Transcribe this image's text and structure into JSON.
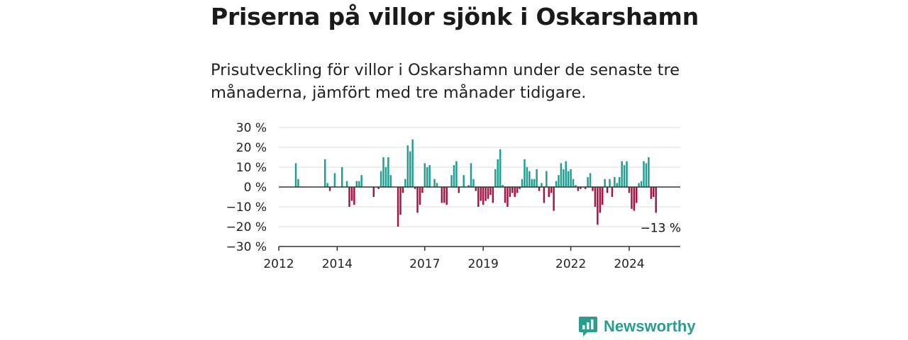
{
  "title": "Priserna på villor sjönk i Oskarshamn",
  "subtitle": "Prisutveckling för villor i Oskarshamn under de senaste tre månaderna, jämfört med tre månader tidigare.",
  "brand": "Newsworthy",
  "colors": {
    "positive": "#1d9e91",
    "negative": "#a31443",
    "grid": "#dddddd",
    "axis": "#333333",
    "brand": "#2a9d8f"
  },
  "chart_data": {
    "type": "bar",
    "x_start": "2012-01",
    "x_end": "2025-10",
    "ylim": [
      -30,
      30
    ],
    "y_ticks": [
      {
        "value": 30,
        "label": "30 %"
      },
      {
        "value": 20,
        "label": "20 %"
      },
      {
        "value": 10,
        "label": "10 %"
      },
      {
        "value": 0,
        "label": "0 %"
      },
      {
        "value": -10,
        "label": "−10 %"
      },
      {
        "value": -20,
        "label": "−20 %"
      },
      {
        "value": -30,
        "label": "−30 %"
      }
    ],
    "x_ticks": [
      {
        "date": "2012-01",
        "label": "2012"
      },
      {
        "date": "2014-01",
        "label": "2014"
      },
      {
        "date": "2017-01",
        "label": "2017"
      },
      {
        "date": "2019-01",
        "label": "2019"
      },
      {
        "date": "2022-01",
        "label": "2022"
      },
      {
        "date": "2024-01",
        "label": "2024"
      }
    ],
    "annotation": {
      "date": "2025-09",
      "value": -13,
      "text": "−13 %"
    },
    "grid": true,
    "series": [
      {
        "points": [
          [
            "2012-08",
            12
          ],
          [
            "2012-09",
            4
          ],
          [
            "2013-08",
            14
          ],
          [
            "2013-09",
            2
          ],
          [
            "2013-10",
            -2
          ],
          [
            "2013-12",
            7
          ],
          [
            "2014-03",
            10
          ],
          [
            "2014-05",
            3
          ],
          [
            "2014-06",
            -10
          ],
          [
            "2014-07",
            -7
          ],
          [
            "2014-08",
            -9
          ],
          [
            "2014-09",
            3
          ],
          [
            "2014-10",
            3
          ],
          [
            "2014-11",
            6
          ],
          [
            "2015-04",
            -5
          ],
          [
            "2015-06",
            -1
          ],
          [
            "2015-07",
            8
          ],
          [
            "2015-08",
            15
          ],
          [
            "2015-09",
            10
          ],
          [
            "2015-10",
            15
          ],
          [
            "2015-11",
            6
          ],
          [
            "2016-02",
            -20
          ],
          [
            "2016-03",
            -14
          ],
          [
            "2016-04",
            -3
          ],
          [
            "2016-05",
            4
          ],
          [
            "2016-06",
            21
          ],
          [
            "2016-07",
            18
          ],
          [
            "2016-08",
            24
          ],
          [
            "2016-09",
            -1
          ],
          [
            "2016-10",
            -13
          ],
          [
            "2016-11",
            -9
          ],
          [
            "2016-12",
            -3
          ],
          [
            "2017-01",
            12
          ],
          [
            "2017-02",
            10
          ],
          [
            "2017-03",
            11
          ],
          [
            "2017-05",
            4
          ],
          [
            "2017-06",
            2
          ],
          [
            "2017-08",
            -8
          ],
          [
            "2017-09",
            -8
          ],
          [
            "2017-10",
            -9
          ],
          [
            "2017-12",
            6
          ],
          [
            "2018-01",
            11
          ],
          [
            "2018-02",
            13
          ],
          [
            "2018-03",
            -3
          ],
          [
            "2018-05",
            6
          ],
          [
            "2018-07",
            1
          ],
          [
            "2018-08",
            12
          ],
          [
            "2018-09",
            4
          ],
          [
            "2018-10",
            -2
          ],
          [
            "2018-11",
            -10
          ],
          [
            "2018-12",
            -7
          ],
          [
            "2019-01",
            -9
          ],
          [
            "2019-02",
            -7
          ],
          [
            "2019-03",
            -6
          ],
          [
            "2019-04",
            -4
          ],
          [
            "2019-05",
            -8
          ],
          [
            "2019-06",
            9
          ],
          [
            "2019-07",
            14
          ],
          [
            "2019-08",
            19
          ],
          [
            "2019-09",
            1
          ],
          [
            "2019-10",
            -8
          ],
          [
            "2019-11",
            -10
          ],
          [
            "2019-12",
            -5
          ],
          [
            "2020-01",
            -3
          ],
          [
            "2020-02",
            -5
          ],
          [
            "2020-03",
            -3
          ],
          [
            "2020-04",
            -1
          ],
          [
            "2020-05",
            4
          ],
          [
            "2020-06",
            14
          ],
          [
            "2020-07",
            10
          ],
          [
            "2020-08",
            8
          ],
          [
            "2020-09",
            4
          ],
          [
            "2020-10",
            4
          ],
          [
            "2020-11",
            9
          ],
          [
            "2020-12",
            -2
          ],
          [
            "2021-01",
            2
          ],
          [
            "2021-02",
            -8
          ],
          [
            "2021-03",
            8
          ],
          [
            "2021-04",
            -5
          ],
          [
            "2021-05",
            -3
          ],
          [
            "2021-06",
            -12
          ],
          [
            "2021-07",
            3
          ],
          [
            "2021-08",
            6
          ],
          [
            "2021-09",
            12
          ],
          [
            "2021-10",
            9
          ],
          [
            "2021-11",
            13
          ],
          [
            "2021-12",
            8
          ],
          [
            "2022-01",
            9
          ],
          [
            "2022-02",
            4
          ],
          [
            "2022-03",
            1
          ],
          [
            "2022-04",
            -2
          ],
          [
            "2022-05",
            -1
          ],
          [
            "2022-07",
            -1
          ],
          [
            "2022-08",
            5
          ],
          [
            "2022-09",
            7
          ],
          [
            "2022-10",
            -2
          ],
          [
            "2022-11",
            -10
          ],
          [
            "2022-12",
            -19
          ],
          [
            "2023-01",
            -13
          ],
          [
            "2023-02",
            -9
          ],
          [
            "2023-03",
            4
          ],
          [
            "2023-04",
            -3
          ],
          [
            "2023-05",
            4
          ],
          [
            "2023-06",
            -5
          ],
          [
            "2023-07",
            5
          ],
          [
            "2023-08",
            2
          ],
          [
            "2023-09",
            5
          ],
          [
            "2023-10",
            13
          ],
          [
            "2023-11",
            11
          ],
          [
            "2023-12",
            13
          ],
          [
            "2024-01",
            -3
          ],
          [
            "2024-02",
            -11
          ],
          [
            "2024-03",
            -12
          ],
          [
            "2024-04",
            -8
          ],
          [
            "2024-05",
            2
          ],
          [
            "2024-06",
            3
          ],
          [
            "2024-07",
            13
          ],
          [
            "2024-08",
            12
          ],
          [
            "2024-09",
            15
          ],
          [
            "2024-10",
            -6
          ],
          [
            "2024-11",
            -5
          ],
          [
            "2024-12",
            -13
          ]
        ]
      }
    ]
  }
}
